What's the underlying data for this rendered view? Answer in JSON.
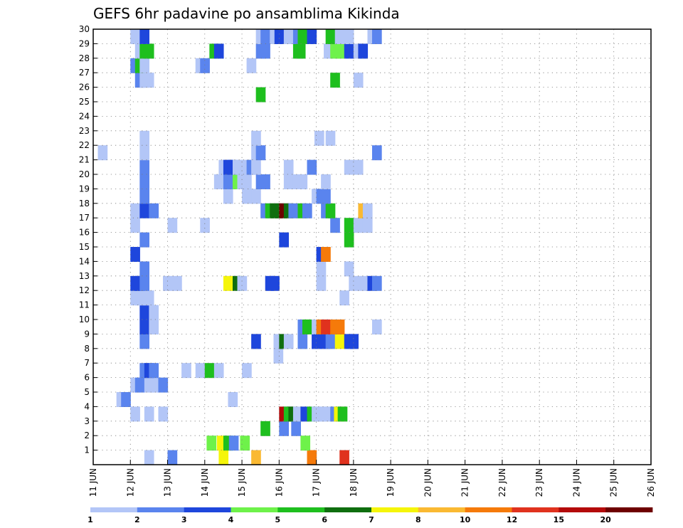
{
  "chart_data": {
    "type": "heatmap",
    "title": "GEFS 6hr padavine po ansamblima Kikinda",
    "xlabel": "",
    "ylabel": "",
    "x_tick_labels": [
      "11 JUN",
      "12 JUN",
      "13 JUN",
      "14 JUN",
      "15 JUN",
      "16 JUN",
      "17 JUN",
      "18 JUN",
      "19 JUN",
      "20 JUN",
      "21 JUN",
      "22 JUN",
      "23 JUN",
      "24 JUN",
      "25 JUN",
      "26 JUN"
    ],
    "y_tick_labels": [
      "1",
      "2",
      "3",
      "4",
      "5",
      "6",
      "7",
      "8",
      "9",
      "10",
      "11",
      "12",
      "13",
      "14",
      "15",
      "16",
      "17",
      "18",
      "19",
      "20",
      "21",
      "22",
      "23",
      "24",
      "25",
      "26",
      "27",
      "28",
      "29",
      "30"
    ],
    "xlim": [
      0,
      60
    ],
    "ylim": [
      0,
      30
    ],
    "grid": true,
    "colorbar": {
      "labels": [
        "1",
        "2",
        "3",
        "4",
        "5",
        "6",
        "7",
        "8",
        "10",
        "12",
        "15",
        "20"
      ],
      "colors": [
        "#b3c6f7",
        "#5a84ee",
        "#1e46dc",
        "#6ef24a",
        "#1ebf1e",
        "#0f6e0f",
        "#f5f50a",
        "#fab932",
        "#f57a0a",
        "#e0321e",
        "#b40a0a",
        "#6e0000"
      ]
    },
    "cells": [
      [
        5.5,
        0,
        0
      ],
      [
        8.0,
        0,
        1
      ],
      [
        13.5,
        0,
        6
      ],
      [
        17.0,
        0,
        7
      ],
      [
        23.0,
        0,
        8
      ],
      [
        26.5,
        0,
        9
      ],
      [
        12.2,
        1,
        3
      ],
      [
        13.3,
        1,
        6
      ],
      [
        14.0,
        1,
        4
      ],
      [
        14.6,
        1,
        1
      ],
      [
        15.8,
        1,
        3
      ],
      [
        22.3,
        1,
        3
      ],
      [
        18.0,
        2,
        4
      ],
      [
        20.0,
        2,
        1
      ],
      [
        21.3,
        2,
        1
      ],
      [
        4.0,
        3,
        0
      ],
      [
        5.5,
        3,
        0
      ],
      [
        7.0,
        3,
        0
      ],
      [
        20.0,
        3,
        10
      ],
      [
        20.5,
        3,
        4
      ],
      [
        21.0,
        3,
        5
      ],
      [
        21.5,
        3,
        0
      ],
      [
        22.3,
        3,
        2
      ],
      [
        23.0,
        3,
        4
      ],
      [
        23.5,
        3,
        0
      ],
      [
        24.0,
        3,
        0
      ],
      [
        24.6,
        3,
        0
      ],
      [
        25.5,
        3,
        1
      ],
      [
        25.9,
        3,
        6
      ],
      [
        26.3,
        3,
        4
      ],
      [
        2.5,
        4,
        0
      ],
      [
        3.0,
        4,
        1
      ],
      [
        14.5,
        4,
        0
      ],
      [
        4.0,
        5,
        0
      ],
      [
        4.5,
        5,
        1
      ],
      [
        5.5,
        5,
        0
      ],
      [
        6.0,
        5,
        0
      ],
      [
        7.0,
        5,
        1
      ],
      [
        5.0,
        6,
        1
      ],
      [
        5.5,
        6,
        2
      ],
      [
        6.0,
        6,
        1
      ],
      [
        9.5,
        6,
        0
      ],
      [
        11.0,
        6,
        0
      ],
      [
        12.0,
        6,
        4
      ],
      [
        13.0,
        6,
        0
      ],
      [
        16.0,
        6,
        0
      ],
      [
        19.4,
        7,
        0
      ],
      [
        5.0,
        8,
        1
      ],
      [
        17.0,
        8,
        2
      ],
      [
        19.4,
        8,
        0
      ],
      [
        20.0,
        8,
        5
      ],
      [
        20.5,
        8,
        0
      ],
      [
        22.0,
        8,
        1
      ],
      [
        23.5,
        8,
        2
      ],
      [
        24.5,
        8,
        2
      ],
      [
        25.0,
        8,
        1
      ],
      [
        26.0,
        8,
        6
      ],
      [
        27.0,
        8,
        2
      ],
      [
        27.5,
        8,
        2
      ],
      [
        5.0,
        9,
        2
      ],
      [
        6.0,
        9,
        0
      ],
      [
        22.0,
        9,
        1
      ],
      [
        22.5,
        9,
        4
      ],
      [
        23.5,
        9,
        0
      ],
      [
        24.0,
        9,
        8
      ],
      [
        24.5,
        9,
        9
      ],
      [
        25.5,
        9,
        8
      ],
      [
        26.0,
        9,
        8
      ],
      [
        30.0,
        9,
        0
      ],
      [
        5.0,
        10,
        2
      ],
      [
        6.0,
        10,
        0
      ],
      [
        4.0,
        11,
        0
      ],
      [
        4.5,
        11,
        0
      ],
      [
        5.0,
        11,
        0
      ],
      [
        5.5,
        11,
        0
      ],
      [
        26.5,
        11,
        0
      ],
      [
        4.0,
        12,
        2
      ],
      [
        4.5,
        12,
        2
      ],
      [
        5.0,
        12,
        1
      ],
      [
        7.5,
        12,
        0
      ],
      [
        8.5,
        12,
        0
      ],
      [
        14.0,
        12,
        6
      ],
      [
        15.0,
        12,
        5
      ],
      [
        15.5,
        12,
        0
      ],
      [
        18.5,
        12,
        2
      ],
      [
        19.0,
        12,
        2
      ],
      [
        24.0,
        12,
        0
      ],
      [
        27.5,
        12,
        0
      ],
      [
        28.5,
        12,
        0
      ],
      [
        29.5,
        12,
        2
      ],
      [
        30.0,
        12,
        1
      ],
      [
        5.0,
        13,
        1
      ],
      [
        24.0,
        13,
        0
      ],
      [
        27.0,
        13,
        0
      ],
      [
        4.0,
        14,
        2
      ],
      [
        24.0,
        14,
        2
      ],
      [
        24.5,
        14,
        8
      ],
      [
        5.0,
        15,
        1
      ],
      [
        20.0,
        15,
        2
      ],
      [
        27.0,
        15,
        4
      ],
      [
        4.0,
        16,
        0
      ],
      [
        8.0,
        16,
        0
      ],
      [
        11.5,
        16,
        0
      ],
      [
        25.5,
        16,
        1
      ],
      [
        27.0,
        16,
        4
      ],
      [
        28.0,
        16,
        0
      ],
      [
        29.0,
        16,
        0
      ],
      [
        4.0,
        17,
        0
      ],
      [
        5.0,
        17,
        2
      ],
      [
        6.0,
        17,
        1
      ],
      [
        18.0,
        17,
        1
      ],
      [
        18.5,
        17,
        4
      ],
      [
        19.0,
        17,
        5
      ],
      [
        19.5,
        17,
        5
      ],
      [
        20.0,
        17,
        11
      ],
      [
        20.5,
        17,
        5
      ],
      [
        21.0,
        17,
        1
      ],
      [
        22.0,
        17,
        4
      ],
      [
        22.5,
        17,
        1
      ],
      [
        24.5,
        17,
        1
      ],
      [
        25.0,
        17,
        4
      ],
      [
        28.5,
        17,
        7
      ],
      [
        29.0,
        17,
        0
      ],
      [
        5.0,
        18,
        1
      ],
      [
        14.0,
        18,
        0
      ],
      [
        16.0,
        18,
        0
      ],
      [
        17.0,
        18,
        0
      ],
      [
        23.5,
        18,
        0
      ],
      [
        24.0,
        18,
        1
      ],
      [
        24.5,
        18,
        1
      ],
      [
        5.0,
        19,
        1
      ],
      [
        13.0,
        19,
        0
      ],
      [
        14.0,
        19,
        1
      ],
      [
        15.0,
        19,
        3
      ],
      [
        15.5,
        19,
        0
      ],
      [
        16.0,
        19,
        0
      ],
      [
        17.5,
        19,
        1
      ],
      [
        18.0,
        19,
        1
      ],
      [
        20.5,
        19,
        0
      ],
      [
        21.0,
        19,
        0
      ],
      [
        21.5,
        19,
        0
      ],
      [
        22.0,
        19,
        0
      ],
      [
        24.5,
        19,
        0
      ],
      [
        5.0,
        20,
        1
      ],
      [
        13.5,
        20,
        0
      ],
      [
        14.0,
        20,
        2
      ],
      [
        14.5,
        20,
        2
      ],
      [
        15.0,
        20,
        0
      ],
      [
        15.5,
        20,
        0
      ],
      [
        16.5,
        20,
        1
      ],
      [
        17.0,
        20,
        0
      ],
      [
        20.5,
        20,
        0
      ],
      [
        23.0,
        20,
        1
      ],
      [
        27.0,
        20,
        0
      ],
      [
        28.0,
        20,
        0
      ],
      [
        0.5,
        21,
        0
      ],
      [
        5.0,
        21,
        0
      ],
      [
        17.0,
        21,
        0
      ],
      [
        17.5,
        21,
        1
      ],
      [
        30.0,
        21,
        1
      ],
      [
        5.0,
        22,
        0
      ],
      [
        17.0,
        22,
        0
      ],
      [
        23.8,
        22,
        0
      ],
      [
        25.0,
        22,
        0
      ],
      [
        17.5,
        25,
        4
      ],
      [
        4.5,
        26,
        1
      ],
      [
        5.0,
        26,
        0
      ],
      [
        5.5,
        26,
        0
      ],
      [
        25.5,
        26,
        4
      ],
      [
        28.0,
        26,
        0
      ],
      [
        4.0,
        27,
        1
      ],
      [
        4.5,
        27,
        4
      ],
      [
        5.0,
        27,
        0
      ],
      [
        11.0,
        27,
        0
      ],
      [
        11.5,
        27,
        1
      ],
      [
        16.5,
        27,
        0
      ],
      [
        4.5,
        28,
        0
      ],
      [
        5.0,
        28,
        4
      ],
      [
        5.5,
        28,
        4
      ],
      [
        12.5,
        28,
        4
      ],
      [
        13.0,
        28,
        2
      ],
      [
        17.5,
        28,
        1
      ],
      [
        18.0,
        28,
        1
      ],
      [
        21.5,
        28,
        4
      ],
      [
        21.8,
        28,
        4
      ],
      [
        24.8,
        28,
        0
      ],
      [
        25.5,
        28,
        3
      ],
      [
        26.0,
        28,
        3
      ],
      [
        27.0,
        28,
        2
      ],
      [
        28.0,
        28,
        0
      ],
      [
        28.5,
        28,
        2
      ],
      [
        4.0,
        29,
        0
      ],
      [
        5.0,
        29,
        2
      ],
      [
        17.5,
        29,
        0
      ],
      [
        18.0,
        29,
        1
      ],
      [
        19.0,
        29,
        0
      ],
      [
        19.5,
        29,
        2
      ],
      [
        20.5,
        29,
        0
      ],
      [
        21.5,
        29,
        1
      ],
      [
        22.0,
        29,
        4
      ],
      [
        22.5,
        29,
        4
      ],
      [
        23.0,
        29,
        2
      ],
      [
        25.0,
        29,
        4
      ],
      [
        25.5,
        29,
        4
      ],
      [
        26.0,
        29,
        0
      ],
      [
        27.0,
        29,
        0
      ],
      [
        29.5,
        29,
        0
      ],
      [
        30.0,
        29,
        1
      ]
    ]
  }
}
